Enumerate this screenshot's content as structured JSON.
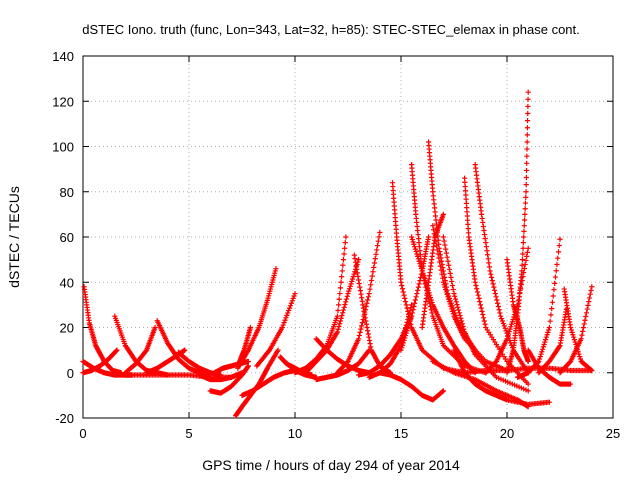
{
  "chart_data": {
    "type": "scatter",
    "title": "dSTEC Iono. truth (func, Lon=343, Lat=32, h=85): STEC-STEC_elemax in phase cont.",
    "xlabel": "GPS time / hours of day 294 of year 2014",
    "ylabel": "dSTEC  / TECUs",
    "xlim": [
      0,
      25
    ],
    "ylim": [
      -20,
      140
    ],
    "xticks": [
      0,
      5,
      10,
      15,
      20,
      25
    ],
    "yticks": [
      -20,
      0,
      20,
      40,
      60,
      80,
      100,
      120,
      140
    ],
    "xtick_labels": [
      "0",
      "5",
      "10",
      "15",
      "20",
      "25"
    ],
    "ytick_labels": [
      "-20",
      "0",
      "20",
      "40",
      "60",
      "80",
      "100",
      "120",
      "140"
    ],
    "grid": true,
    "legend": "none",
    "marker": "+",
    "color": "#ff0000",
    "series": [
      {
        "x": [
          0.0,
          0.5,
          1.0,
          1.5,
          2.0,
          2.3
        ],
        "y": [
          5,
          2,
          0,
          -1,
          -1,
          -1
        ]
      },
      {
        "x": [
          0.05,
          0.3,
          0.6,
          1.0,
          1.4,
          1.8
        ],
        "y": [
          38,
          22,
          12,
          5,
          1,
          0
        ]
      },
      {
        "x": [
          0.0,
          0.4,
          0.8,
          1.2,
          1.6
        ],
        "y": [
          0,
          1,
          3,
          6,
          10
        ]
      },
      {
        "x": [
          1.5,
          2.0,
          2.5,
          3.0,
          3.5,
          4.0
        ],
        "y": [
          25,
          12,
          5,
          1,
          0,
          -1
        ]
      },
      {
        "x": [
          2.0,
          2.5,
          3.0,
          3.4
        ],
        "y": [
          0,
          4,
          10,
          20
        ]
      },
      {
        "x": [
          3.5,
          4.0,
          4.5,
          5.0,
          5.5,
          6.0
        ],
        "y": [
          23,
          13,
          6,
          2,
          0,
          -1
        ]
      },
      {
        "x": [
          3.0,
          3.5,
          4.0,
          4.5,
          4.8
        ],
        "y": [
          0,
          2,
          5,
          8,
          10
        ]
      },
      {
        "x": [
          4.5,
          5.0,
          5.5,
          6.0,
          6.5
        ],
        "y": [
          9,
          5,
          2,
          0,
          -1
        ]
      },
      {
        "x": [
          2.0,
          3.0,
          4.0,
          5.0,
          6.0,
          7.0
        ],
        "y": [
          -1,
          -1,
          -1,
          -1,
          -2,
          -2
        ]
      },
      {
        "x": [
          5.5,
          6.0,
          6.5,
          7.0,
          7.5
        ],
        "y": [
          -1,
          -3,
          -3,
          -2,
          0
        ]
      },
      {
        "x": [
          6.2,
          6.6,
          7.0,
          7.4,
          7.8
        ],
        "y": [
          0,
          2,
          3,
          4,
          5
        ]
      },
      {
        "x": [
          6.0,
          6.5,
          7.0,
          7.5,
          7.8
        ],
        "y": [
          -8,
          -9,
          -6,
          -1,
          3
        ]
      },
      {
        "x": [
          7.2,
          7.5,
          7.9,
          8.3,
          8.7,
          9.2
        ],
        "y": [
          -19,
          -15,
          -10,
          -5,
          2,
          10
        ]
      },
      {
        "x": [
          7.3,
          7.6,
          7.9
        ],
        "y": [
          3,
          10,
          20
        ]
      },
      {
        "x": [
          7.3,
          7.8,
          8.3,
          8.7,
          9.1
        ],
        "y": [
          2,
          10,
          20,
          32,
          46
        ]
      },
      {
        "x": [
          7.5,
          8.0,
          8.5,
          9.0,
          9.5,
          10.0
        ],
        "y": [
          -10,
          -8,
          -5,
          -2,
          0,
          1
        ]
      },
      {
        "x": [
          8.2,
          8.8,
          9.4,
          10.0
        ],
        "y": [
          3,
          10,
          20,
          35
        ]
      },
      {
        "x": [
          9.5,
          10.0,
          10.5,
          11.0
        ],
        "y": [
          5,
          1,
          -1,
          -2
        ]
      },
      {
        "x": [
          9.3,
          9.6,
          10.0,
          10.4,
          10.8
        ],
        "y": [
          7,
          4,
          2,
          0,
          -1
        ]
      },
      {
        "x": [
          10.0,
          10.5,
          11.0,
          11.5,
          12.0,
          12.4
        ],
        "y": [
          0,
          2,
          6,
          12,
          25,
          60
        ]
      },
      {
        "x": [
          10.5,
          11.0,
          11.5,
          12.0,
          12.5,
          13.0
        ],
        "y": [
          0,
          5,
          10,
          18,
          35,
          50
        ]
      },
      {
        "x": [
          11.0,
          11.5,
          12.0,
          12.5,
          13.0,
          13.5
        ],
        "y": [
          15,
          10,
          6,
          3,
          1,
          0
        ]
      },
      {
        "x": [
          11.0,
          11.5,
          12.0,
          12.5,
          13.0,
          13.5
        ],
        "y": [
          -3,
          -2,
          -1,
          1,
          4,
          10
        ]
      },
      {
        "x": [
          12.0,
          12.5,
          13.0,
          13.5,
          14.0
        ],
        "y": [
          0,
          5,
          15,
          35,
          62
        ]
      },
      {
        "x": [
          12.8,
          13.2,
          13.6,
          14.0,
          14.5
        ],
        "y": [
          52,
          30,
          10,
          3,
          0
        ]
      },
      {
        "x": [
          13.0,
          13.5,
          14.0,
          14.5,
          15.0,
          15.5
        ],
        "y": [
          -1,
          0,
          3,
          8,
          15,
          25
        ]
      },
      {
        "x": [
          13.5,
          14.0,
          14.5,
          15.0,
          15.5
        ],
        "y": [
          -2,
          0,
          4,
          12,
          30
        ]
      },
      {
        "x": [
          14.6,
          14.8,
          15.0,
          15.5,
          16.0,
          17.0,
          18.0
        ],
        "y": [
          84,
          60,
          40,
          20,
          10,
          2,
          0
        ]
      },
      {
        "x": [
          15.5,
          15.7,
          16.0,
          16.5,
          17.0,
          18.0,
          19.0
        ],
        "y": [
          92,
          70,
          45,
          25,
          12,
          3,
          0
        ]
      },
      {
        "x": [
          15.0,
          15.5,
          16.0,
          16.3
        ],
        "y": [
          10,
          25,
          45,
          60
        ]
      },
      {
        "x": [
          16.3,
          16.5,
          16.8,
          17.2,
          17.8,
          18.5
        ],
        "y": [
          102,
          80,
          55,
          35,
          20,
          10
        ]
      },
      {
        "x": [
          16.0,
          16.3,
          16.6,
          17.0
        ],
        "y": [
          20,
          40,
          60,
          70
        ]
      },
      {
        "x": [
          16.5,
          17.0,
          17.5,
          18.0,
          19.0,
          20.0
        ],
        "y": [
          65,
          40,
          25,
          15,
          5,
          1
        ]
      },
      {
        "x": [
          17.0,
          17.5,
          18.0,
          18.5,
          19.5,
          21.0
        ],
        "y": [
          60,
          35,
          18,
          8,
          -2,
          -8
        ]
      },
      {
        "x": [
          18.0,
          18.2,
          18.5,
          19.0,
          20.0,
          21.0
        ],
        "y": [
          86,
          60,
          40,
          20,
          5,
          -5
        ]
      },
      {
        "x": [
          18.5,
          18.8,
          19.2,
          19.7,
          20.3,
          21.0
        ],
        "y": [
          92,
          70,
          45,
          25,
          10,
          0
        ]
      },
      {
        "x": [
          17.5,
          18.0,
          18.5,
          19.0,
          19.5,
          20.0,
          21.0,
          22.0
        ],
        "y": [
          10,
          0,
          -5,
          -8,
          -10,
          -12,
          -14,
          -13
        ]
      },
      {
        "x": [
          16.5,
          17.5,
          18.5,
          19.5,
          20.5,
          21.0
        ],
        "y": [
          5,
          0,
          -3,
          -8,
          -12,
          -15
        ]
      },
      {
        "x": [
          19.0,
          19.5,
          20.0,
          20.5,
          21.0
        ],
        "y": [
          0,
          5,
          15,
          30,
          55
        ]
      },
      {
        "x": [
          20.0,
          20.3,
          20.6,
          20.8,
          21.0
        ],
        "y": [
          50,
          30,
          20,
          10,
          5
        ]
      },
      {
        "x": [
          20.0,
          20.3,
          20.5,
          20.7,
          20.9,
          21.0
        ],
        "y": [
          0,
          10,
          25,
          45,
          80,
          124
        ]
      },
      {
        "x": [
          20.5,
          21.0,
          21.5,
          22.0,
          22.5
        ],
        "y": [
          -2,
          0,
          5,
          20,
          59
        ]
      },
      {
        "x": [
          21.0,
          21.5,
          22.0,
          22.5,
          23.0
        ],
        "y": [
          10,
          2,
          -2,
          -5,
          -5
        ]
      },
      {
        "x": [
          21.5,
          22.0,
          22.5,
          22.8
        ],
        "y": [
          0,
          5,
          12,
          28
        ]
      },
      {
        "x": [
          22.7,
          23.0,
          23.5,
          24.0
        ],
        "y": [
          37,
          20,
          5,
          1
        ]
      },
      {
        "x": [
          22.5,
          23.0,
          23.5,
          24.0
        ],
        "y": [
          0,
          5,
          15,
          38
        ]
      },
      {
        "x": [
          18.0,
          19.0,
          20.0,
          21.0,
          22.0,
          23.0,
          24.0
        ],
        "y": [
          0,
          1,
          1,
          2,
          2,
          1,
          1
        ]
      },
      {
        "x": [
          14.0,
          14.5,
          15.0,
          15.5,
          16.0,
          16.5,
          17.0
        ],
        "y": [
          0,
          -1,
          -3,
          -6,
          -10,
          -12,
          -8
        ]
      },
      {
        "x": [
          15.5,
          16.0,
          16.5,
          17.0,
          17.5,
          18.0,
          18.5
        ],
        "y": [
          60,
          45,
          30,
          20,
          12,
          5,
          0
        ]
      }
    ]
  }
}
